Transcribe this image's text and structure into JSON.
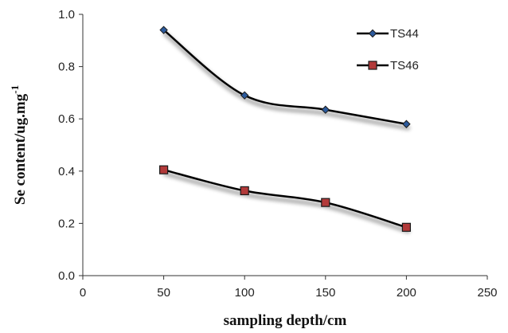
{
  "chart_data": {
    "type": "line",
    "xlabel": "sampling depth/cm",
    "ylabel": "Se content/ug.mg",
    "ylabel_superscript": "-1",
    "xlim": [
      0,
      250
    ],
    "ylim": [
      0.0,
      1.0
    ],
    "xticks": [
      "0",
      "50",
      "100",
      "150",
      "200",
      "250"
    ],
    "yticks": [
      "0.0",
      "0.2",
      "0.4",
      "0.6",
      "0.8",
      "1.0"
    ],
    "x": [
      50,
      100,
      150,
      200
    ],
    "series": [
      {
        "name": "TS44",
        "values": [
          0.94,
          0.69,
          0.635,
          0.58
        ],
        "marker": "diamond",
        "marker_color": "#2c5a9c"
      },
      {
        "name": "TS46",
        "values": [
          0.405,
          0.325,
          0.28,
          0.185
        ],
        "marker": "square",
        "marker_color": "#b23a3a"
      }
    ],
    "smooth": true,
    "grid": false,
    "legend_position": "top-right"
  }
}
